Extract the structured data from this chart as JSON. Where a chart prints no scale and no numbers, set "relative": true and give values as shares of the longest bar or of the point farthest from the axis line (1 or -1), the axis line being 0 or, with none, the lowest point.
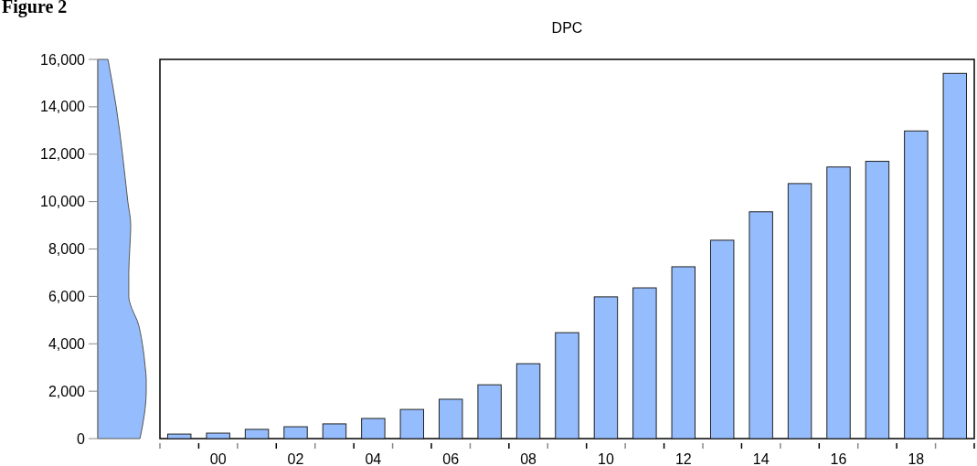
{
  "chart_data": [
    {
      "type": "area",
      "orientation": "horizontal",
      "relative": true,
      "color": "#95bdfd",
      "x": [
        0,
        500,
        1000,
        2000,
        2500,
        3000,
        4000,
        5000,
        5500,
        6000,
        7000,
        8000,
        9000,
        10000,
        12000,
        14000,
        16000
      ],
      "values": [
        0.87,
        0.92,
        0.96,
        1,
        1,
        0.98,
        0.92,
        0.81,
        0.7,
        0.64,
        0.64,
        0.66,
        0.68,
        0.62,
        0.51,
        0.38,
        0.21
      ],
      "ylim": [
        0,
        16000
      ],
      "yticks": [
        {
          "value": 0,
          "label": "0"
        },
        {
          "value": 2000,
          "label": "2,000"
        },
        {
          "value": 4000,
          "label": "4,000"
        },
        {
          "value": 6000,
          "label": "6,000"
        },
        {
          "value": 8000,
          "label": "8,000"
        },
        {
          "value": 10000,
          "label": "10,000"
        },
        {
          "value": 12000,
          "label": "12,000"
        },
        {
          "value": 14000,
          "label": "14,000"
        },
        {
          "value": 16000,
          "label": "16,000"
        }
      ],
      "annotations": [
        "Figure 2"
      ]
    },
    {
      "type": "bar",
      "title": "DPC",
      "color": "#95bdfd",
      "tick_labels": "x",
      "categories": [
        null,
        "00",
        null,
        "02",
        null,
        "04",
        null,
        "06",
        null,
        "08",
        null,
        "10",
        null,
        "12",
        null,
        "14",
        null,
        "16",
        null,
        "18",
        null
      ],
      "values": [
        190,
        230,
        390,
        500,
        620,
        850,
        1230,
        1660,
        2270,
        3160,
        4470,
        5980,
        6360,
        7250,
        8370,
        9570,
        10760,
        11460,
        11700,
        12980,
        15410
      ],
      "ylim": [
        0,
        16000
      ]
    }
  ]
}
